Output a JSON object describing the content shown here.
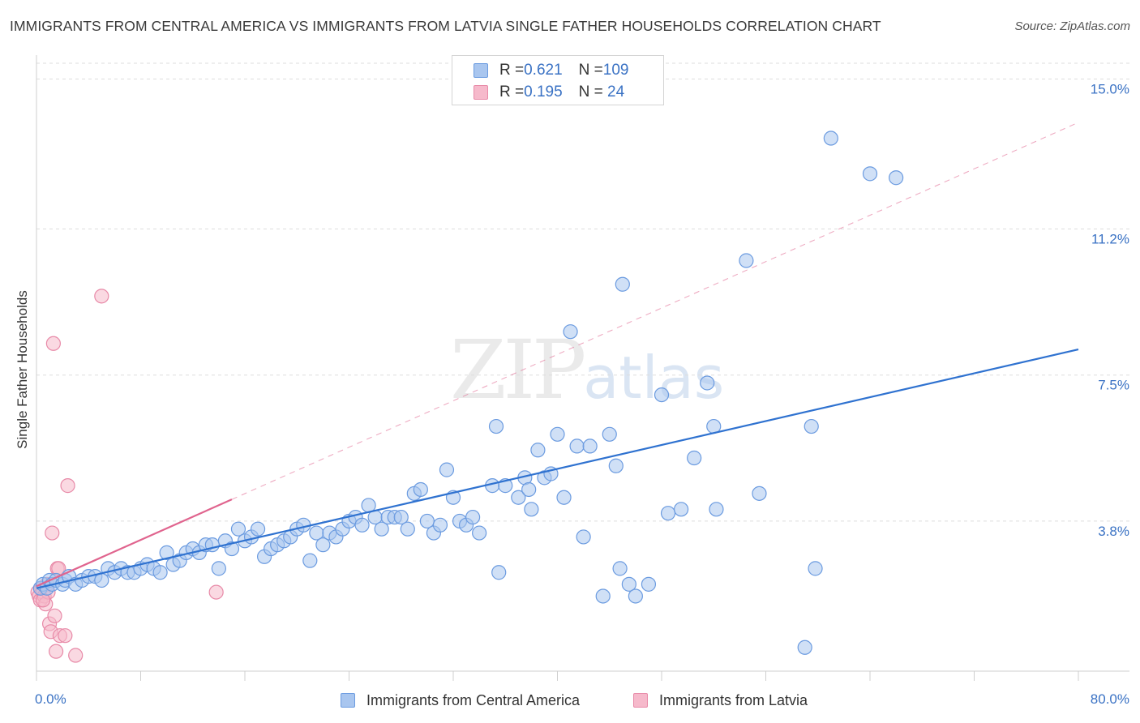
{
  "title": "IMMIGRANTS FROM CENTRAL AMERICA VS IMMIGRANTS FROM LATVIA SINGLE FATHER HOUSEHOLDS CORRELATION CHART",
  "source": "Source: ZipAtlas.com",
  "watermark": {
    "zip": "ZIP",
    "atlas": "atlas"
  },
  "legend_top": [
    {
      "r_label": "R = ",
      "r": "0.621",
      "n_label": "N = ",
      "n": "109"
    },
    {
      "r_label": "R = ",
      "r": "0.195",
      "n_label": "N = ",
      "n": " 24"
    }
  ],
  "colors": {
    "blue_fill": "#a9c6ef",
    "blue_stroke": "#6b9be0",
    "blue_line": "#2f72d0",
    "pink_fill": "#f6b9cb",
    "pink_stroke": "#e88aa8",
    "pink_line": "#e0648e",
    "tick_label": "#3a72c4",
    "grid": "#dddddd"
  },
  "chart_data": {
    "type": "scatter",
    "title": "IMMIGRANTS FROM CENTRAL AMERICA VS IMMIGRANTS FROM LATVIA SINGLE FATHER HOUSEHOLDS CORRELATION CHART",
    "xlabel": "",
    "ylabel": "Single Father Households",
    "xlim": [
      0,
      80
    ],
    "ylim": [
      0,
      15.4
    ],
    "x_tick_labels": [
      "0.0%",
      "80.0%"
    ],
    "y_ticks": [
      3.8,
      7.5,
      11.2,
      15.0
    ],
    "y_tick_labels": [
      "3.8%",
      "7.5%",
      "11.2%",
      "15.0%"
    ],
    "grid": "horizontal dashed",
    "legend": "bottom-center",
    "series": [
      {
        "name": "Immigrants from Central America",
        "color": "#a9c6ef",
        "points": [
          [
            0.3,
            2.1
          ],
          [
            0.5,
            2.2
          ],
          [
            0.8,
            2.1
          ],
          [
            1.0,
            2.3
          ],
          [
            1.2,
            2.2
          ],
          [
            1.5,
            2.3
          ],
          [
            2.0,
            2.2
          ],
          [
            2.2,
            2.3
          ],
          [
            2.5,
            2.4
          ],
          [
            3.0,
            2.2
          ],
          [
            3.5,
            2.3
          ],
          [
            4.0,
            2.4
          ],
          [
            4.5,
            2.4
          ],
          [
            5.0,
            2.3
          ],
          [
            5.5,
            2.6
          ],
          [
            6.0,
            2.5
          ],
          [
            6.5,
            2.6
          ],
          [
            7.0,
            2.5
          ],
          [
            7.5,
            2.5
          ],
          [
            8.0,
            2.6
          ],
          [
            8.5,
            2.7
          ],
          [
            9.0,
            2.6
          ],
          [
            9.5,
            2.5
          ],
          [
            10.0,
            3.0
          ],
          [
            10.5,
            2.7
          ],
          [
            11.0,
            2.8
          ],
          [
            11.5,
            3.0
          ],
          [
            12.0,
            3.1
          ],
          [
            12.5,
            3.0
          ],
          [
            13.0,
            3.2
          ],
          [
            13.5,
            3.2
          ],
          [
            14.0,
            2.6
          ],
          [
            14.5,
            3.3
          ],
          [
            15.0,
            3.1
          ],
          [
            15.5,
            3.6
          ],
          [
            16.0,
            3.3
          ],
          [
            16.5,
            3.4
          ],
          [
            17.0,
            3.6
          ],
          [
            17.5,
            2.9
          ],
          [
            18.0,
            3.1
          ],
          [
            18.5,
            3.2
          ],
          [
            19.0,
            3.3
          ],
          [
            19.5,
            3.4
          ],
          [
            20.0,
            3.6
          ],
          [
            20.5,
            3.7
          ],
          [
            21.0,
            2.8
          ],
          [
            21.5,
            3.5
          ],
          [
            22.0,
            3.2
          ],
          [
            22.5,
            3.5
          ],
          [
            23.0,
            3.4
          ],
          [
            23.5,
            3.6
          ],
          [
            24.0,
            3.8
          ],
          [
            24.5,
            3.9
          ],
          [
            25.0,
            3.7
          ],
          [
            25.5,
            4.2
          ],
          [
            26.0,
            3.9
          ],
          [
            26.5,
            3.6
          ],
          [
            27.0,
            3.9
          ],
          [
            27.5,
            3.9
          ],
          [
            28.0,
            3.9
          ],
          [
            28.5,
            3.6
          ],
          [
            29.0,
            4.5
          ],
          [
            29.5,
            4.6
          ],
          [
            30.0,
            3.8
          ],
          [
            30.5,
            3.5
          ],
          [
            31.0,
            3.7
          ],
          [
            31.5,
            5.1
          ],
          [
            32.0,
            4.4
          ],
          [
            32.5,
            3.8
          ],
          [
            33.0,
            3.7
          ],
          [
            33.5,
            3.9
          ],
          [
            34.0,
            3.5
          ],
          [
            35.0,
            4.7
          ],
          [
            35.5,
            2.5
          ],
          [
            35.3,
            6.2
          ],
          [
            36.0,
            4.7
          ],
          [
            37.0,
            4.4
          ],
          [
            37.5,
            4.9
          ],
          [
            37.8,
            4.6
          ],
          [
            38.0,
            4.1
          ],
          [
            38.5,
            5.6
          ],
          [
            39.0,
            4.9
          ],
          [
            39.5,
            5.0
          ],
          [
            40.0,
            6.0
          ],
          [
            40.5,
            4.4
          ],
          [
            41.0,
            8.6
          ],
          [
            41.5,
            5.7
          ],
          [
            42.0,
            3.4
          ],
          [
            42.5,
            5.7
          ],
          [
            43.5,
            1.9
          ],
          [
            44.0,
            6.0
          ],
          [
            44.5,
            5.2
          ],
          [
            44.8,
            2.6
          ],
          [
            45.5,
            2.2
          ],
          [
            45.0,
            9.8
          ],
          [
            46.0,
            1.9
          ],
          [
            47.0,
            2.2
          ],
          [
            48.0,
            7.0
          ],
          [
            48.5,
            4.0
          ],
          [
            49.5,
            4.1
          ],
          [
            50.5,
            5.4
          ],
          [
            51.5,
            7.3
          ],
          [
            52.0,
            6.2
          ],
          [
            52.2,
            4.1
          ],
          [
            54.5,
            10.4
          ],
          [
            55.5,
            4.5
          ],
          [
            59.0,
            0.6
          ],
          [
            59.5,
            6.2
          ],
          [
            59.8,
            2.6
          ],
          [
            61.0,
            13.5
          ],
          [
            64.0,
            12.6
          ],
          [
            66.0,
            12.5
          ]
        ]
      },
      {
        "name": "Immigrants from Latvia",
        "color": "#f6b9cb",
        "points": [
          [
            0.1,
            2.0
          ],
          [
            0.2,
            1.9
          ],
          [
            0.3,
            1.8
          ],
          [
            0.4,
            2.1
          ],
          [
            0.5,
            2.0
          ],
          [
            0.6,
            1.9
          ],
          [
            0.7,
            1.7
          ],
          [
            0.8,
            2.2
          ],
          [
            0.9,
            2.0
          ],
          [
            1.0,
            1.2
          ],
          [
            1.1,
            1.0
          ],
          [
            1.2,
            3.5
          ],
          [
            1.3,
            8.3
          ],
          [
            1.4,
            1.4
          ],
          [
            1.5,
            0.5
          ],
          [
            1.6,
            2.6
          ],
          [
            1.7,
            2.6
          ],
          [
            1.8,
            0.9
          ],
          [
            2.2,
            0.9
          ],
          [
            2.4,
            4.7
          ],
          [
            3.0,
            0.4
          ],
          [
            5.0,
            9.5
          ],
          [
            13.8,
            2.0
          ],
          [
            0.5,
            1.8
          ]
        ]
      }
    ],
    "trend_lines": [
      {
        "series": "Immigrants from Central America",
        "style": "solid",
        "x": [
          0,
          80
        ],
        "y": [
          2.1,
          8.15
        ]
      },
      {
        "series": "Immigrants from Latvia",
        "style": "solid",
        "x": [
          0,
          15
        ],
        "y": [
          2.15,
          4.35
        ]
      },
      {
        "series": "Immigrants from Latvia",
        "style": "dashed",
        "x": [
          15,
          80
        ],
        "y": [
          4.35,
          13.9
        ]
      }
    ]
  },
  "bottom_legend": [
    {
      "label": "Immigrants from Central America"
    },
    {
      "label": "Immigrants from Latvia"
    }
  ]
}
